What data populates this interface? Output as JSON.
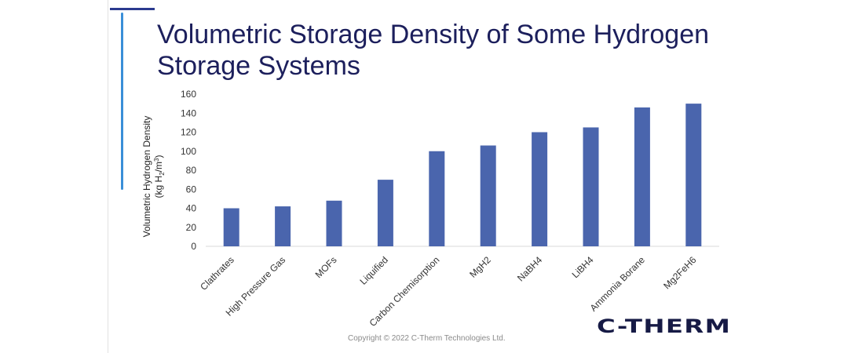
{
  "slide": {
    "title": "Volumetric Storage Density of Some Hydrogen Storage Systems",
    "copyright": "Copyright © 2022 C-Therm Technologies Ltd.",
    "logo_text": "C-THERM"
  },
  "colors": {
    "bar": "#4a65ad",
    "axis": "#d9d9d9",
    "text": "#333333",
    "title": "#1c1f5c"
  },
  "chart_data": {
    "type": "bar",
    "categories": [
      "Clathrates",
      "High Pressure Gas",
      "MOFs",
      "Liquified",
      "Carbon Chemisorption",
      "MgH2",
      "NaBH4",
      "LiBH4",
      "Ammonia Borane",
      "Mg2FeH6"
    ],
    "values": [
      40,
      42,
      48,
      70,
      100,
      106,
      120,
      125,
      146,
      150
    ],
    "ylabel_line1": "Volumetric Hydrogen Density",
    "ylabel_line2": "(kg H2/m3)",
    "ylim": [
      0,
      160
    ],
    "yticks": [
      0,
      20,
      40,
      60,
      80,
      100,
      120,
      140,
      160
    ],
    "grid": false,
    "legend": "none"
  }
}
